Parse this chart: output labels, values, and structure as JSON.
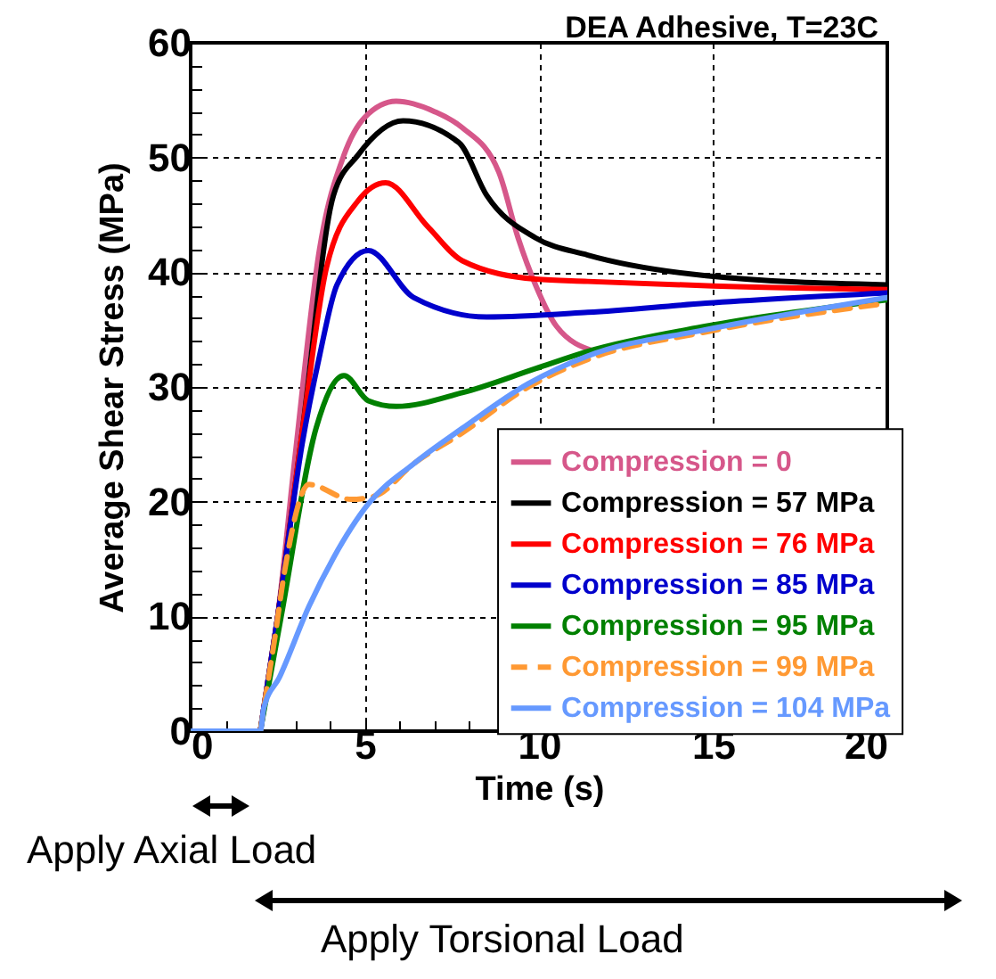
{
  "chart_data": {
    "type": "line",
    "xlabel": "Time (s)",
    "ylabel": "Average Shear Stress (MPa)",
    "xlim": [
      0,
      20
    ],
    "ylim": [
      0,
      60
    ],
    "xticks": [
      0,
      {
        "value": 1,
        "label": null
      },
      {
        "value": 2,
        "label": null
      },
      {
        "value": 3,
        "label": null
      },
      {
        "value": 4,
        "label": null
      },
      5,
      {
        "value": 6,
        "label": null
      },
      {
        "value": 7,
        "label": null
      },
      {
        "value": 8,
        "label": null
      },
      {
        "value": 9,
        "label": null
      },
      10,
      {
        "value": 11,
        "label": null
      },
      {
        "value": 12,
        "label": null
      },
      {
        "value": 13,
        "label": null
      },
      {
        "value": 14,
        "label": null
      },
      15,
      {
        "value": 16,
        "label": null
      },
      {
        "value": 17,
        "label": null
      },
      {
        "value": 18,
        "label": null
      },
      {
        "value": 19,
        "label": null
      },
      20
    ],
    "yticks": [
      0,
      {
        "value": 2,
        "label": null
      },
      {
        "value": 4,
        "label": null
      },
      {
        "value": 6,
        "label": null
      },
      {
        "value": 8,
        "label": null
      },
      10,
      {
        "value": 12,
        "label": null
      },
      {
        "value": 14,
        "label": null
      },
      {
        "value": 16,
        "label": null
      },
      {
        "value": 18,
        "label": null
      },
      20,
      {
        "value": 22,
        "label": null
      },
      {
        "value": 24,
        "label": null
      },
      {
        "value": 26,
        "label": null
      },
      {
        "value": 28,
        "label": null
      },
      30,
      {
        "value": 32,
        "label": null
      },
      {
        "value": 34,
        "label": null
      },
      {
        "value": 36,
        "label": null
      },
      {
        "value": 38,
        "label": null
      },
      40,
      {
        "value": 42,
        "label": null
      },
      {
        "value": 44,
        "label": null
      },
      {
        "value": 46,
        "label": null
      },
      {
        "value": 48,
        "label": null
      },
      50,
      {
        "value": 52,
        "label": null
      },
      {
        "value": 54,
        "label": null
      },
      {
        "value": 56,
        "label": null
      },
      {
        "value": 58,
        "label": null
      },
      60
    ],
    "grid": true,
    "legend": "bottom right",
    "annotations": [
      "DEA Adhesive, T=23C",
      "Apply Axial Load",
      "Apply Torsional Load"
    ],
    "series": [
      {
        "name": "Compression = 0",
        "color": "#d6578a",
        "x": [
          2,
          2.5,
          3,
          3.7,
          4.4,
          5,
          5.9,
          7,
          7.8,
          8.85,
          9.4,
          9.9,
          10.5,
          11.6
        ],
        "values": [
          0,
          10,
          24,
          42,
          50.2,
          53.5,
          54.9,
          54,
          52.6,
          48.7,
          43,
          38.9,
          35.3,
          33.1
        ]
      },
      {
        "name": "Compression = 57 MPa",
        "color": "#000000",
        "x": [
          2,
          2.5,
          3.2,
          4.1,
          4.8,
          6.1,
          7.7,
          8.5,
          9.9,
          11.4,
          14.8,
          20
        ],
        "values": [
          0,
          10,
          26,
          46.7,
          50.2,
          53.2,
          51.3,
          46.7,
          43,
          41.5,
          39.7,
          38.9
        ]
      },
      {
        "name": "Compression = 76 MPa",
        "color": "#ff0000",
        "x": [
          2,
          2.5,
          3.2,
          3.9,
          4.8,
          5.6,
          6.8,
          7.8,
          9.9,
          11.4,
          15,
          20
        ],
        "values": [
          0,
          10,
          26,
          40.4,
          46.2,
          47.8,
          44,
          41,
          39.4,
          39.2,
          38.8,
          38.5
        ]
      },
      {
        "name": "Compression = 85 MPa",
        "color": "#0000cc",
        "x": [
          2,
          2.5,
          3.2,
          3.7,
          4.2,
          5.1,
          6.4,
          8.5,
          11.4,
          14.8,
          20
        ],
        "values": [
          0,
          10,
          25,
          32.7,
          38.9,
          41.9,
          37.8,
          36.1,
          36.5,
          37.3,
          38.2
        ]
      },
      {
        "name": "Compression = 95 MPa",
        "color": "#008000",
        "x": [
          2,
          2.6,
          3.6,
          4.4,
          5.1,
          5.9,
          7.8,
          9.9,
          11.4,
          14.8,
          20
        ],
        "values": [
          0,
          10,
          26.4,
          31,
          28.8,
          28.3,
          29.5,
          31.6,
          33.1,
          35.3,
          37.6
        ]
      },
      {
        "name": "Compression = 99 MPa",
        "color": "#ff9933",
        "line_style": "dashed",
        "x": [
          2,
          2.1,
          2.4,
          2.7,
          3.4,
          4.6,
          5.3,
          6.4,
          7.8,
          9.7,
          11.4,
          14.8,
          20
        ],
        "values": [
          0,
          2,
          7.8,
          14,
          21.5,
          20.2,
          20.5,
          23.3,
          26,
          30,
          32.4,
          34.8,
          37.3
        ]
      },
      {
        "name": "Compression = 104 MPa",
        "color": "#6699ff",
        "x": [
          0,
          2,
          2.1,
          2.55,
          3.4,
          4.1,
          5.1,
          6.4,
          7.8,
          9.7,
          11.4,
          14.8,
          20
        ],
        "values": [
          0,
          0,
          2,
          4.7,
          10.9,
          15.1,
          19.8,
          23.3,
          26.4,
          30.3,
          32.7,
          35,
          37.8
        ]
      }
    ]
  }
}
